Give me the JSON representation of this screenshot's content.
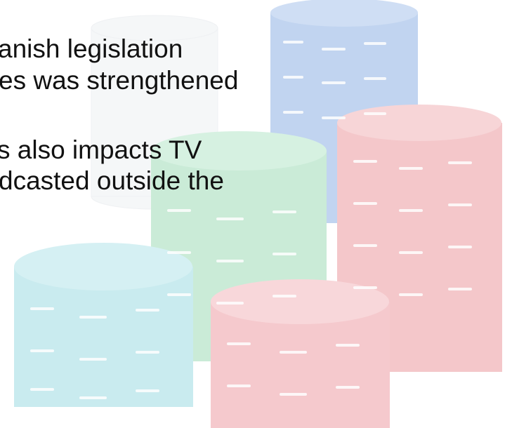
{
  "slide": {
    "lines": [
      "anish legislation",
      "es was strengthened",
      "s also impacts TV",
      "dcasted outside the"
    ]
  },
  "background": {
    "image": "poker-chip-stacks",
    "chip_colors": [
      "#6f9ad8",
      "#e27e86",
      "#86cfa5",
      "#7ecfd6"
    ]
  }
}
